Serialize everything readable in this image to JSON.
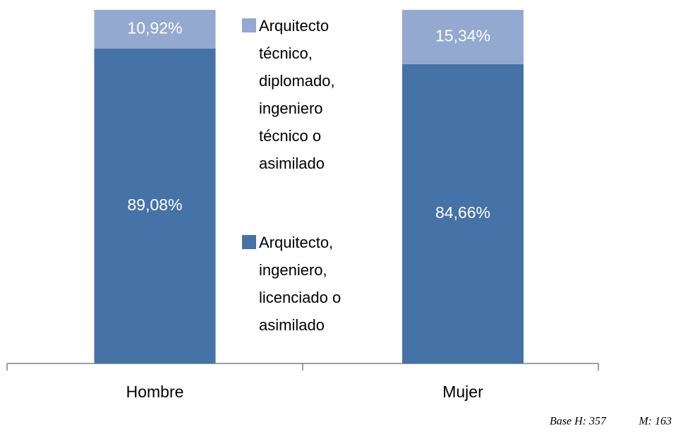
{
  "chart_data": {
    "type": "stacked_bar",
    "categories": [
      "Hombre",
      "Mujer"
    ],
    "series": [
      {
        "name": "Arquitecto, ingeniero, licenciado o asimilado",
        "color": "#4572a7",
        "values": [
          89.08,
          84.66
        ],
        "value_labels": [
          "89,08%",
          "84,66%"
        ]
      },
      {
        "name": "Arquitecto técnico, diplomado, ingeniero técnico o asimilado",
        "color": "#93a9cf",
        "values": [
          10.92,
          15.34
        ],
        "value_labels": [
          "10,92%",
          "15,34%"
        ]
      }
    ],
    "ylim": [
      0,
      100
    ],
    "footnote": [
      "Base H: 357",
      "M: 163"
    ]
  }
}
